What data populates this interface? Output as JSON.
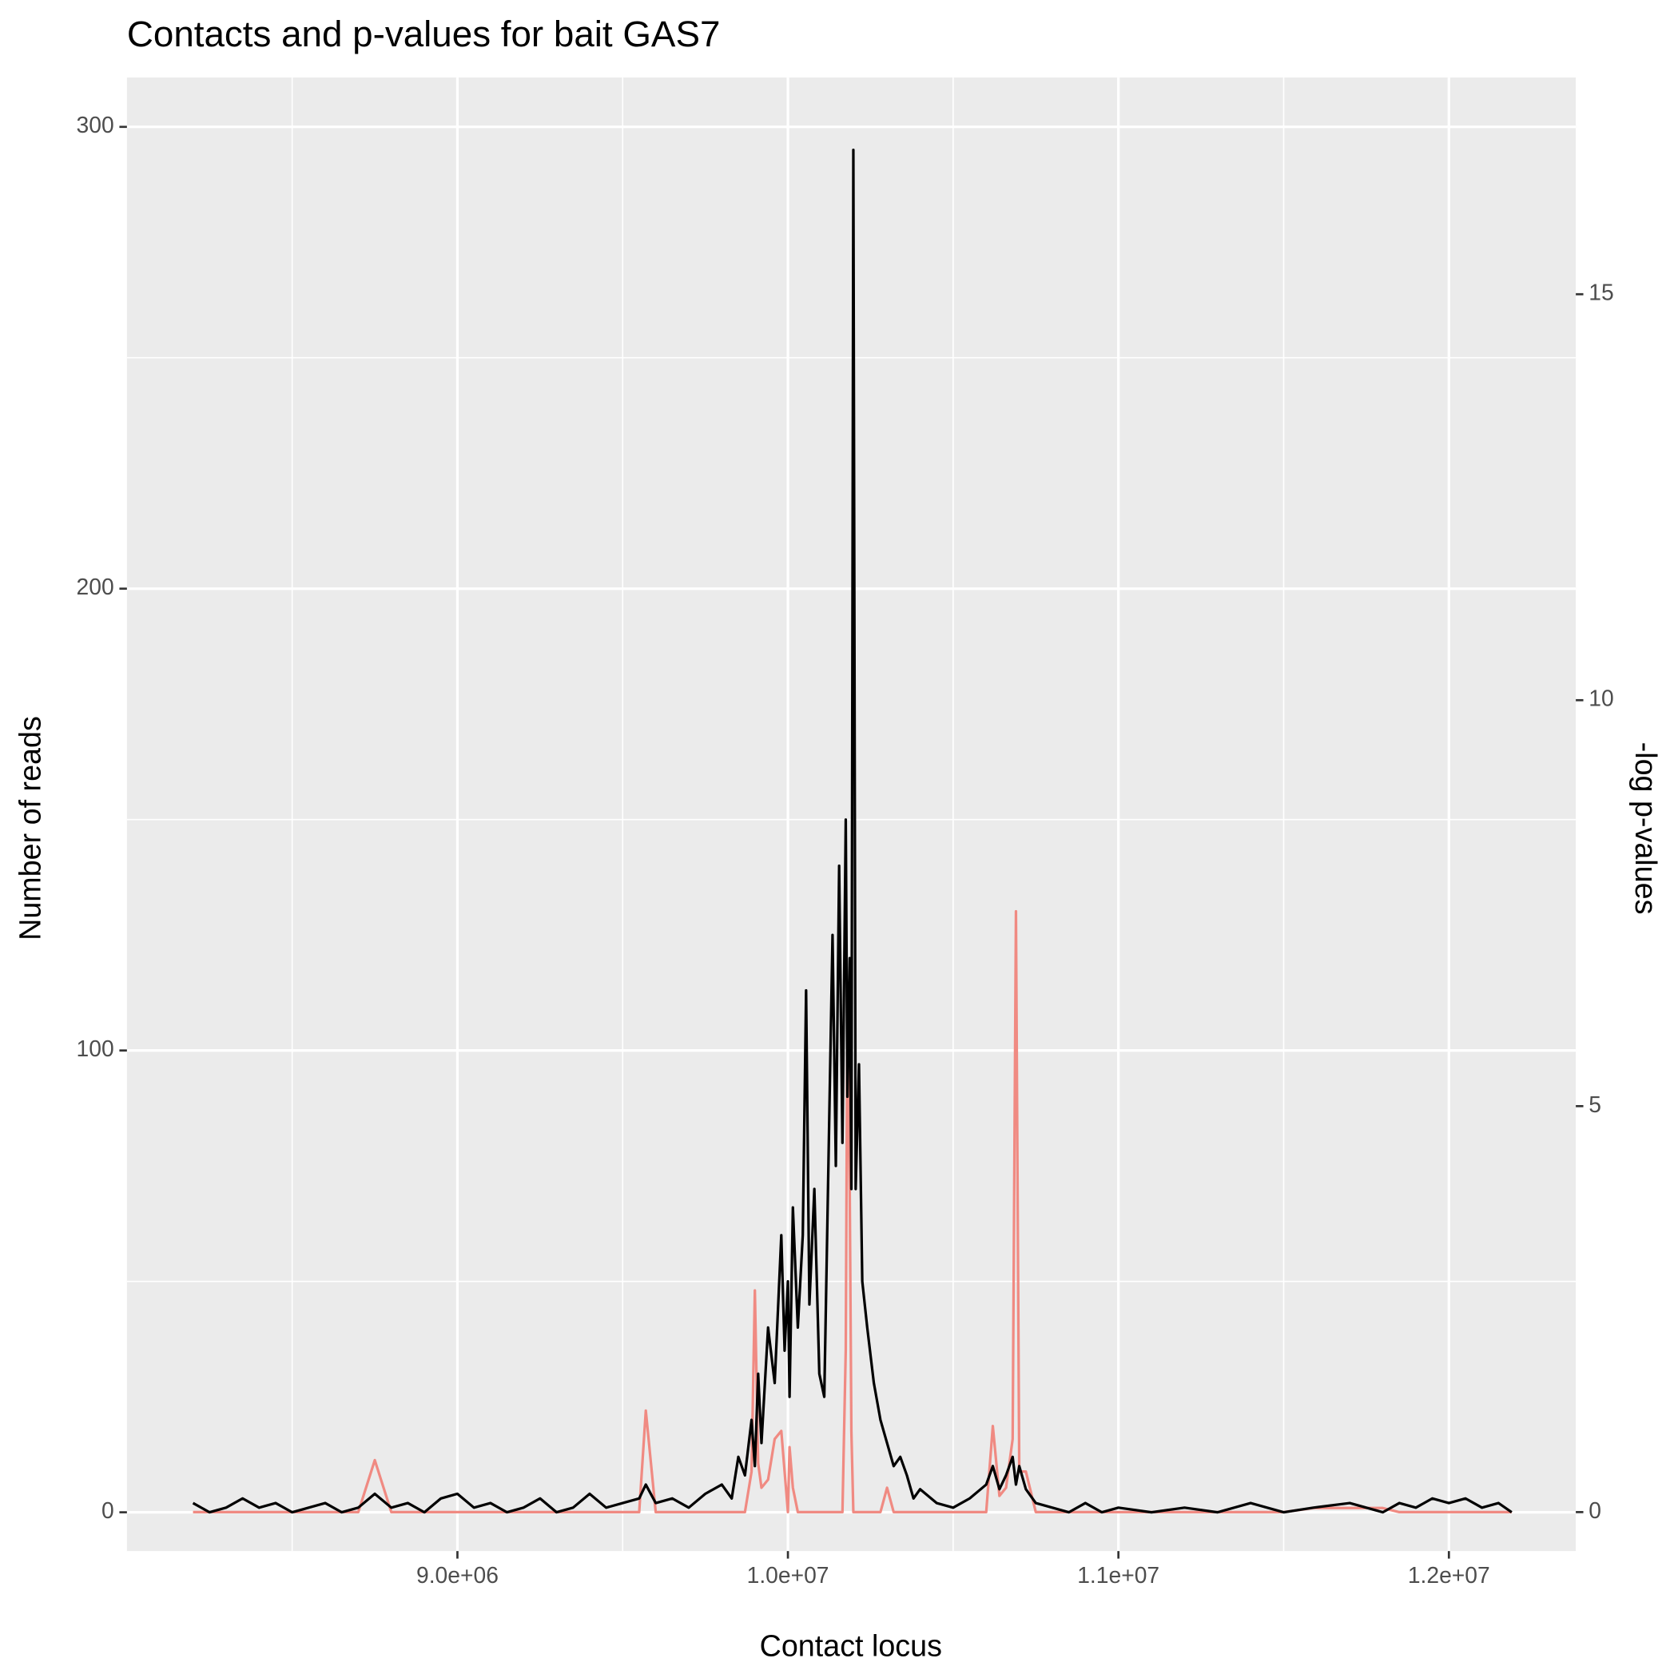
{
  "chart_data": {
    "type": "line",
    "title": "Contacts and p-values for bait GAS7",
    "x_label": "Contact locus",
    "y_label": "Number of reads",
    "y2_label": "-log p-values",
    "grid": true,
    "xlim": [
      8000000,
      12384000
    ],
    "xticks": [
      {
        "value": 9000000,
        "label": "9.0e+06"
      },
      {
        "value": 10000000,
        "label": "1.0e+07"
      },
      {
        "value": 11000000,
        "label": "1.1e+07"
      },
      {
        "value": 12000000,
        "label": "1.2e+07"
      }
    ],
    "ylim": [
      -8.4,
      310.7
    ],
    "yticks": [
      0,
      100,
      200,
      300
    ],
    "y2lim": [
      -0.48,
      17.67
    ],
    "y2ticks": [
      0,
      5,
      10,
      15
    ],
    "x": [
      8200000,
      8250000,
      8300000,
      8350000,
      8400000,
      8450000,
      8500000,
      8550000,
      8600000,
      8650000,
      8700000,
      8750000,
      8800000,
      8850000,
      8900000,
      8950000,
      9000000,
      9050000,
      9100000,
      9150000,
      9200000,
      9250000,
      9300000,
      9350000,
      9400000,
      9450000,
      9500000,
      9550000,
      9570000,
      9600000,
      9650000,
      9700000,
      9750000,
      9800000,
      9830000,
      9850000,
      9870000,
      9890000,
      9900000,
      9910000,
      9920000,
      9940000,
      9960000,
      9980000,
      9990000,
      10000000,
      10005000,
      10015000,
      10030000,
      10045000,
      10055000,
      10065000,
      10080000,
      10095000,
      10110000,
      10125000,
      10135000,
      10145000,
      10155000,
      10165000,
      10175000,
      10180000,
      10187000,
      10192000,
      10198000,
      10205000,
      10215000,
      10225000,
      10240000,
      10260000,
      10280000,
      10300000,
      10320000,
      10340000,
      10360000,
      10380000,
      10400000,
      10450000,
      10500000,
      10550000,
      10600000,
      10620000,
      10640000,
      10660000,
      10680000,
      10690000,
      10700000,
      10720000,
      10750000,
      10800000,
      10850000,
      10900000,
      10950000,
      11000000,
      11100000,
      11200000,
      11300000,
      11400000,
      11500000,
      11590000,
      11700000,
      11800000,
      11850000,
      11900000,
      11950000,
      12000000,
      12050000,
      12100000,
      12150000,
      12190000
    ],
    "series": [
      {
        "color": "#000000",
        "values": [
          2,
          0,
          1,
          3,
          1,
          2,
          0,
          1,
          2,
          0,
          1,
          4,
          1,
          2,
          0,
          3,
          4,
          1,
          2,
          0,
          1,
          3,
          0,
          1,
          4,
          1,
          2,
          3,
          6,
          2,
          3,
          1,
          4,
          6,
          3,
          12,
          8,
          20,
          10,
          30,
          15,
          40,
          28,
          60,
          35,
          50,
          25,
          66,
          40,
          60,
          113,
          45,
          70,
          30,
          25,
          85,
          125,
          75,
          140,
          80,
          150,
          90,
          120,
          70,
          295,
          70,
          97,
          50,
          40,
          28,
          20,
          15,
          10,
          12,
          8,
          3,
          5,
          2,
          1,
          3,
          6,
          10,
          5,
          8,
          12,
          6,
          10,
          5,
          2,
          1,
          0,
          2,
          0,
          1,
          0,
          1,
          0,
          2,
          0,
          1,
          2,
          0,
          2,
          1,
          3,
          2,
          3,
          1,
          2,
          0
        ]
      },
      {
        "color": "#f08a82",
        "axis": "y2",
        "values": [
          0,
          0,
          0,
          0,
          0,
          0,
          0,
          0,
          0,
          0,
          0,
          0.64,
          0,
          0,
          0,
          0,
          0,
          0,
          0,
          0,
          0,
          0,
          0,
          0,
          0,
          0,
          0,
          0,
          1.25,
          0,
          0,
          0,
          0,
          0,
          0,
          0,
          0,
          0.5,
          2.73,
          0.6,
          0.3,
          0.4,
          0.9,
          1.0,
          0.5,
          0,
          0.8,
          0.3,
          0,
          0,
          0,
          0,
          0,
          0,
          0,
          0,
          0,
          0,
          0,
          0,
          2,
          6.2,
          4,
          1,
          0,
          0,
          0,
          0,
          0,
          0,
          0,
          0.3,
          0,
          0,
          0,
          0,
          0,
          0,
          0,
          0,
          0,
          1.06,
          0.2,
          0.3,
          0.9,
          7.4,
          0.5,
          0.5,
          0,
          0,
          0,
          0,
          0,
          0,
          0,
          0,
          0,
          0,
          0,
          0.05,
          0.05,
          0.05,
          0,
          0,
          0,
          0,
          0,
          0,
          0,
          0
        ]
      }
    ]
  }
}
